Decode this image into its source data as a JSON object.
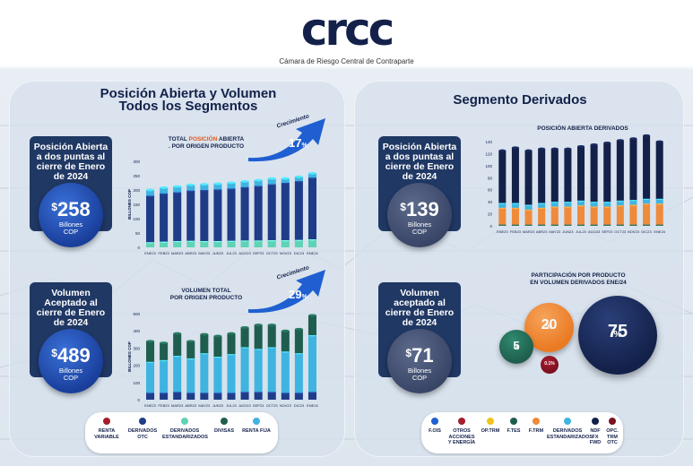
{
  "header": {
    "logo": "crcc",
    "subtitle": "Cámara de Riesgo Central de Contraparte"
  },
  "left_panel": {
    "title_line1": "Posición Abierta y Volumen",
    "title_line2": "Todos los Segmentos",
    "kpi_oi": {
      "label": "Posición Abierta a dos puntas al cierre de Enero de 2024",
      "currency": "$",
      "value": "258",
      "unit_line1": "Billones",
      "unit_line2": "COP"
    },
    "kpi_vol": {
      "label": "Volumen Aceptado al cierre de Enero de 2024",
      "currency": "$",
      "value": "489",
      "unit_line1": "Billones",
      "unit_line2": "COP"
    },
    "chart1": {
      "title_a": "TOTAL ",
      "title_b": "POSICIÓN",
      "title_c": " ABIERTA",
      "title_line2": ". POR ORIGEN PRODUCTO",
      "growth_label": "Crecimiento",
      "growth_value": "17",
      "growth_unit": "%"
    },
    "chart2": {
      "title_line1": "VOLUMEN TOTAL",
      "title_line2": "POR ORIGEN PRODUCTO",
      "growth_label": "Crecimiento",
      "growth_value": "29",
      "growth_unit": "%"
    },
    "legend": [
      {
        "label": "RENTA VARIABLE",
        "color": "#a41e2b"
      },
      {
        "label": "DERIVADOS OTC",
        "color": "#1f3c88"
      },
      {
        "label": "DERIVADOS ESTANDARIZADOS",
        "color": "#5fd3b5"
      },
      {
        "label": "DIVISAS",
        "color": "#1f5e4e"
      },
      {
        "label": "RENTA FIJA",
        "color": "#3fb4e0"
      }
    ]
  },
  "right_panel": {
    "title": "Segmento Derivados",
    "kpi_oi": {
      "label": "Posición Abierta a dos puntas al cierre de Enero de 2024",
      "currency": "$",
      "value": "139",
      "unit_line1": "Billones",
      "unit_line2": "COP"
    },
    "kpi_vol": {
      "label": "Volumen aceptado al cierre de Enero de 2024",
      "currency": "$",
      "value": "71",
      "unit_line1": "Billones",
      "unit_line2": "COP"
    },
    "chart3": {
      "title": "POSICIÓN ABIERTA DERIVADOS"
    },
    "pie": {
      "title_line1": "PARTICIPACIÓN POR PRODUCTO",
      "title_line2": "EN VOLUMEN DERIVADOS ENE/24",
      "b75": "75",
      "b20": "20",
      "b5": "5",
      "b01": "0.1%",
      "pct": "%"
    },
    "legend": [
      {
        "label": "F.OIS",
        "color": "#1f5fd1"
      },
      {
        "label": "OTROS ACCIONES Y ENERGÍA",
        "color": "#a41e2b"
      },
      {
        "label": "OP.TRM",
        "color": "#f0c419"
      },
      {
        "label": "F.TES",
        "color": "#1f5e4e"
      },
      {
        "label": "F.TRM",
        "color": "#ef8a3b"
      },
      {
        "label": "DERIVADOS ESTANDARIZADOS",
        "color": "#3fb4e0"
      },
      {
        "label": "NDF FX FWD",
        "color": "#13214a"
      },
      {
        "label": "OPC. TRM OTC",
        "color": "#7a1020"
      }
    ]
  },
  "chart_data": [
    {
      "type": "bar",
      "title": "TOTAL POSICIÓN ABIERTA . POR ORIGEN PRODUCTO",
      "ylabel": "BILLONES COP",
      "ylim": [
        0,
        300
      ],
      "yticks": [
        "0",
        "50",
        "100",
        "150",
        "200",
        "250",
        "300"
      ],
      "categories": [
        "ENE23",
        "FEB23",
        "MAR23",
        "ABR23",
        "MAY23",
        "JUN23",
        "JUL23",
        "AGO23",
        "SEP23",
        "OCT23",
        "NOV23",
        "DIC23",
        "ENE24"
      ],
      "series": [
        {
          "name": "DERIVADOS ESTANDARIZADOS",
          "color": "#5fd3b5",
          "values": [
            18,
            20,
            22,
            23,
            22,
            22,
            23,
            24,
            24,
            25,
            25,
            26,
            28
          ]
        },
        {
          "name": "DERIVADOS OTC",
          "color": "#1f3c88",
          "values": [
            162,
            168,
            170,
            175,
            178,
            180,
            182,
            186,
            190,
            195,
            200,
            205,
            215
          ]
        },
        {
          "name": "RENTA FIJA",
          "color": "#3fb4e0",
          "values": [
            20,
            20,
            20,
            20,
            20,
            20,
            20,
            20,
            20,
            20,
            15,
            15,
            15
          ]
        }
      ]
    },
    {
      "type": "bar",
      "title": "VOLUMEN TOTAL POR ORIGEN PRODUCTO",
      "ylabel": "BILLONES COP",
      "ylim": [
        0,
        500
      ],
      "yticks": [
        "0",
        "100",
        "200",
        "300",
        "400",
        "500"
      ],
      "categories": [
        "ENE23",
        "FEB23",
        "MAR23",
        "ABR23",
        "MAY23",
        "JUN23",
        "JUL23",
        "AGO23",
        "SEP23",
        "OCT23",
        "NOV23",
        "DIC23",
        "ENE24"
      ],
      "series": [
        {
          "name": "DERIVADOS OTC",
          "color": "#1f3c88",
          "values": [
            40,
            40,
            45,
            40,
            40,
            40,
            40,
            45,
            45,
            45,
            40,
            40,
            45
          ]
        },
        {
          "name": "RENTA FIJA",
          "color": "#3fb4e0",
          "values": [
            180,
            190,
            210,
            200,
            230,
            210,
            225,
            260,
            250,
            260,
            240,
            230,
            330
          ]
        },
        {
          "name": "DIVISAS",
          "color": "#1f5e4e",
          "values": [
            120,
            100,
            130,
            100,
            110,
            120,
            120,
            115,
            140,
            130,
            120,
            140,
            115
          ]
        }
      ]
    },
    {
      "type": "bar",
      "title": "POSICIÓN ABIERTA DERIVADOS",
      "ylim": [
        0,
        140
      ],
      "yticks": [
        "0",
        "20",
        "40",
        "60",
        "80",
        "100",
        "120",
        "140"
      ],
      "categories": [
        "ENE23",
        "FEB23",
        "MAR23",
        "ABR23",
        "MAY23",
        "JUN23",
        "JUL23",
        "AGO23",
        "SEP23",
        "OCT23",
        "NOV23",
        "DIC23",
        "ENE24"
      ],
      "series": [
        {
          "name": "F.TES",
          "color": "#1f5e4e",
          "values": [
            2,
            2,
            2,
            2,
            2,
            2,
            2,
            2,
            2,
            2,
            2,
            2,
            2
          ]
        },
        {
          "name": "F.TRM",
          "color": "#ef8a3b",
          "values": [
            28,
            28,
            25,
            28,
            30,
            30,
            32,
            30,
            30,
            32,
            33,
            35,
            35
          ]
        },
        {
          "name": "DERIVADOS ESTANDARIZADOS",
          "color": "#3fb4e0",
          "values": [
            8,
            8,
            8,
            8,
            8,
            8,
            8,
            8,
            8,
            8,
            8,
            8,
            8
          ]
        },
        {
          "name": "NDF FX FWD",
          "color": "#13214a",
          "values": [
            87,
            92,
            90,
            90,
            88,
            88,
            90,
            95,
            98,
            100,
            102,
            105,
            95
          ]
        }
      ]
    },
    {
      "type": "pie",
      "title": "PARTICIPACIÓN POR PRODUCTO EN VOLUMEN DERIVADOS ENE/24",
      "categories": [
        "NDF FX FWD",
        "F.TRM",
        "F.TES",
        "OPC. TRM OTC"
      ],
      "values": [
        75,
        20,
        5,
        0.1
      ],
      "unit": "%"
    }
  ]
}
